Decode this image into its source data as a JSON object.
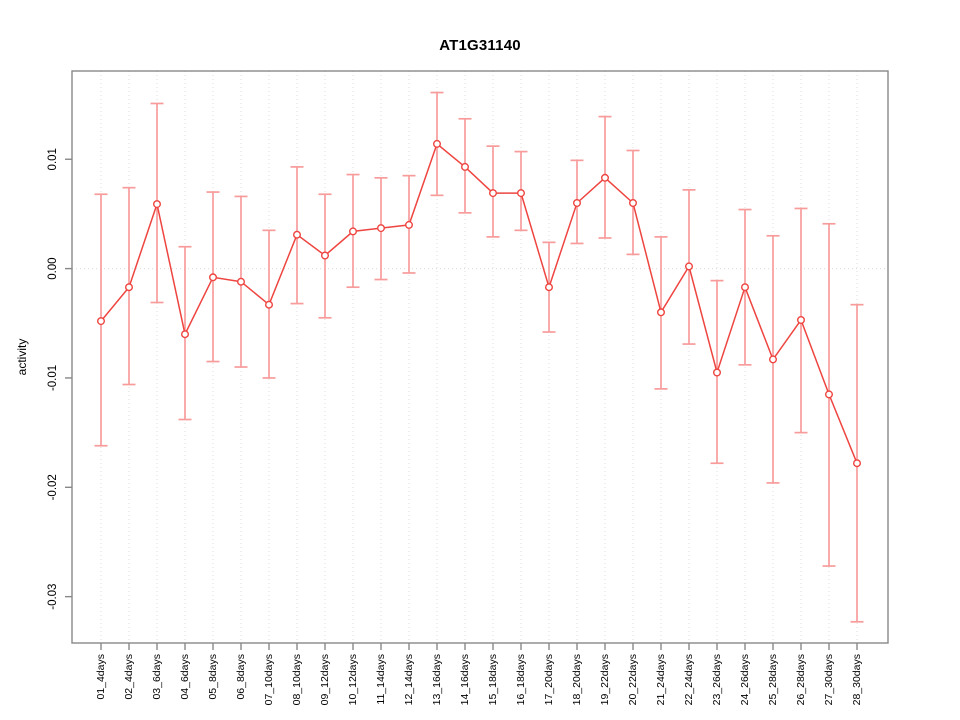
{
  "chart_data": {
    "type": "line",
    "title": "AT1G31140",
    "xlabel": "",
    "ylabel": "activity",
    "legend": "none",
    "grid": "vertical dotted gridlines at each category; dotted horizontal line at y=0",
    "categories": [
      "01_4days",
      "02_4days",
      "03_6days",
      "04_6days",
      "05_8days",
      "06_8days",
      "07_10days",
      "08_10days",
      "09_12days",
      "10_12days",
      "11_14days",
      "12_14days",
      "13_16days",
      "14_16days",
      "15_18days",
      "16_18days",
      "17_20days",
      "18_20days",
      "19_22days",
      "20_22days",
      "21_24days",
      "22_24days",
      "23_26days",
      "24_26days",
      "25_28days",
      "26_28days",
      "27_30days",
      "28_30days"
    ],
    "series": [
      {
        "name": "activity",
        "marker": "open-circle",
        "values": [
          -0.0048,
          -0.0017,
          0.0059,
          -0.006,
          -0.0008,
          -0.0012,
          -0.0033,
          0.0031,
          0.0012,
          0.0034,
          0.0037,
          0.004,
          0.0114,
          0.0093,
          0.0069,
          0.0069,
          -0.0017,
          0.006,
          0.0083,
          0.006,
          -0.004,
          0.0002,
          -0.0095,
          -0.0017,
          -0.0083,
          -0.0047,
          -0.0115,
          -0.0178
        ],
        "error_upper": [
          0.0068,
          0.0074,
          0.0151,
          0.002,
          0.007,
          0.0066,
          0.0035,
          0.0093,
          0.0068,
          0.0086,
          0.0083,
          0.0085,
          0.0161,
          0.0137,
          0.0112,
          0.0107,
          0.0024,
          0.0099,
          0.0139,
          0.0108,
          0.0029,
          0.0072,
          -0.0011,
          0.0054,
          0.003,
          0.0055,
          0.0041,
          -0.0033
        ],
        "error_lower": [
          -0.0162,
          -0.0106,
          -0.0031,
          -0.0138,
          -0.0085,
          -0.009,
          -0.01,
          -0.0032,
          -0.0045,
          -0.0017,
          -0.001,
          -0.0004,
          0.0067,
          0.0051,
          0.0029,
          0.0035,
          -0.0058,
          0.0023,
          0.0028,
          0.0013,
          -0.011,
          -0.0069,
          -0.0178,
          -0.0088,
          -0.0196,
          -0.015,
          -0.0272,
          -0.0323
        ]
      }
    ],
    "ylim": [
      -0.0342,
      0.0181
    ],
    "yticks": [
      0.01,
      0.0,
      -0.01,
      -0.02,
      -0.03
    ],
    "ytick_labels": [
      "0.01",
      "0.00",
      "-0.01",
      "-0.02",
      "-0.03"
    ],
    "colors": {
      "line": "#ee4540",
      "error_bar": "#f89b9b",
      "marker_stroke": "#ee4540",
      "marker_fill": "#ffffff",
      "grid": "#dcdcdc",
      "axis": "#888888",
      "text": "#000000",
      "background": "#ffffff"
    }
  }
}
